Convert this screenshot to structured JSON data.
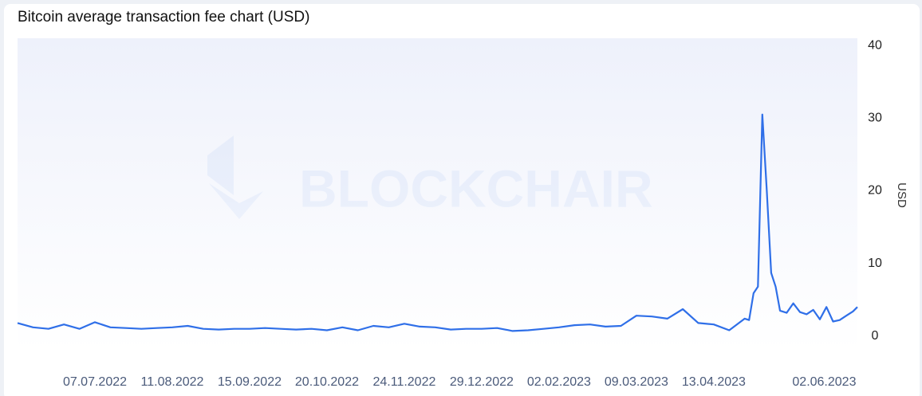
{
  "chart_data": {
    "type": "line",
    "title": "Bitcoin average transaction fee chart (USD)",
    "y_label": "USD",
    "watermark": "BLOCKCHAIR",
    "x": [
      "02.06.2022",
      "09.06.2022",
      "16.06.2022",
      "23.06.2022",
      "30.06.2022",
      "07.07.2022",
      "14.07.2022",
      "21.07.2022",
      "28.07.2022",
      "04.08.2022",
      "11.08.2022",
      "18.08.2022",
      "25.08.2022",
      "01.09.2022",
      "08.09.2022",
      "15.09.2022",
      "22.09.2022",
      "29.09.2022",
      "06.10.2022",
      "13.10.2022",
      "20.10.2022",
      "27.10.2022",
      "03.11.2022",
      "10.11.2022",
      "17.11.2022",
      "24.11.2022",
      "01.12.2022",
      "08.12.2022",
      "15.12.2022",
      "22.12.2022",
      "29.12.2022",
      "05.01.2023",
      "12.01.2023",
      "19.01.2023",
      "26.01.2023",
      "02.02.2023",
      "09.02.2023",
      "16.02.2023",
      "23.02.2023",
      "02.03.2023",
      "09.03.2023",
      "16.03.2023",
      "23.03.2023",
      "30.03.2023",
      "06.04.2023",
      "13.04.2023",
      "20.04.2023",
      "27.04.2023",
      "29.04.2023",
      "01.05.2023",
      "03.05.2023",
      "05.05.2023",
      "07.05.2023",
      "09.05.2023",
      "11.05.2023",
      "13.05.2023",
      "16.05.2023",
      "19.05.2023",
      "22.05.2023",
      "25.05.2023",
      "28.05.2023",
      "31.05.2023",
      "03.06.2023",
      "06.06.2023",
      "09.06.2023",
      "12.06.2023",
      "15.06.2023",
      "17.06.2023"
    ],
    "series": [
      {
        "name": "Average transaction fee",
        "color": "#2f6fe8",
        "values": [
          1.8,
          1.2,
          1.0,
          1.6,
          1.0,
          1.9,
          1.2,
          1.1,
          1.0,
          1.1,
          1.2,
          1.4,
          1.0,
          0.9,
          1.0,
          1.0,
          1.1,
          1.0,
          0.9,
          1.0,
          0.8,
          1.2,
          0.8,
          1.4,
          1.2,
          1.7,
          1.3,
          1.2,
          0.9,
          1.0,
          1.0,
          1.1,
          0.7,
          0.8,
          1.0,
          1.2,
          1.5,
          1.6,
          1.3,
          1.4,
          2.8,
          2.7,
          2.4,
          3.7,
          1.8,
          1.6,
          0.8,
          2.4,
          2.2,
          5.9,
          6.8,
          30.5,
          20,
          8.7,
          6.8,
          3.5,
          3.2,
          4.5,
          3.3,
          3.0,
          3.6,
          2.3,
          4.0,
          2.0,
          2.2,
          2.8,
          3.4,
          4.0
        ]
      }
    ],
    "xlim": [
      "02.06.2022",
      "17.06.2023"
    ],
    "xticks": [
      "07.07.2022",
      "11.08.2022",
      "15.09.2022",
      "20.10.2022",
      "24.11.2022",
      "29.12.2022",
      "02.02.2023",
      "09.03.2023",
      "13.04.2023",
      "02.06.2023"
    ],
    "ylim": [
      -2,
      41
    ],
    "yticks": [
      0,
      10,
      20,
      30,
      40
    ]
  }
}
